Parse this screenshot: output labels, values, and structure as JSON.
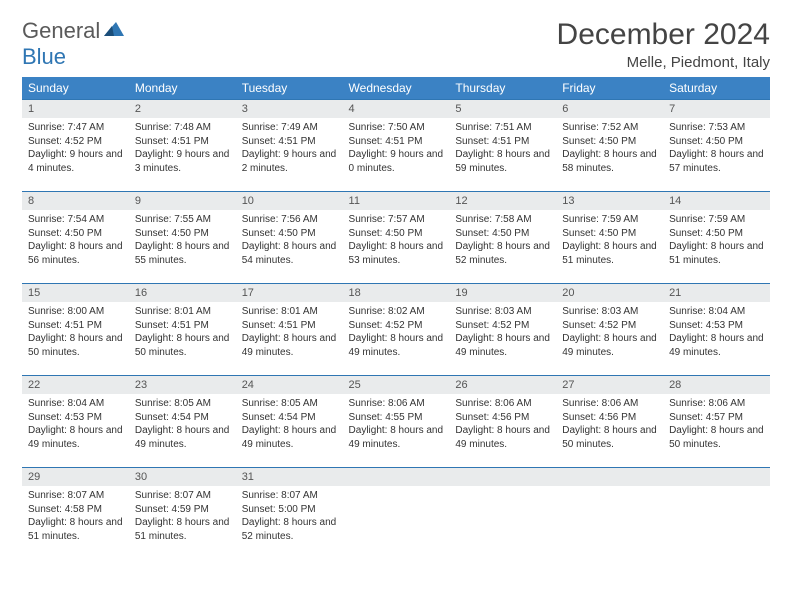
{
  "brand": {
    "name1": "General",
    "name2": "Blue"
  },
  "title": "December 2024",
  "location": "Melle, Piedmont, Italy",
  "colors": {
    "header_bg": "#3b82c4",
    "daynum_bg": "#e9ebec",
    "rule": "#2f76b3",
    "brand_blue": "#2f76b3"
  },
  "weekdays": [
    "Sunday",
    "Monday",
    "Tuesday",
    "Wednesday",
    "Thursday",
    "Friday",
    "Saturday"
  ],
  "days": [
    {
      "n": "1",
      "sr": "7:47 AM",
      "ss": "4:52 PM",
      "dl": "9 hours and 4 minutes."
    },
    {
      "n": "2",
      "sr": "7:48 AM",
      "ss": "4:51 PM",
      "dl": "9 hours and 3 minutes."
    },
    {
      "n": "3",
      "sr": "7:49 AM",
      "ss": "4:51 PM",
      "dl": "9 hours and 2 minutes."
    },
    {
      "n": "4",
      "sr": "7:50 AM",
      "ss": "4:51 PM",
      "dl": "9 hours and 0 minutes."
    },
    {
      "n": "5",
      "sr": "7:51 AM",
      "ss": "4:51 PM",
      "dl": "8 hours and 59 minutes."
    },
    {
      "n": "6",
      "sr": "7:52 AM",
      "ss": "4:50 PM",
      "dl": "8 hours and 58 minutes."
    },
    {
      "n": "7",
      "sr": "7:53 AM",
      "ss": "4:50 PM",
      "dl": "8 hours and 57 minutes."
    },
    {
      "n": "8",
      "sr": "7:54 AM",
      "ss": "4:50 PM",
      "dl": "8 hours and 56 minutes."
    },
    {
      "n": "9",
      "sr": "7:55 AM",
      "ss": "4:50 PM",
      "dl": "8 hours and 55 minutes."
    },
    {
      "n": "10",
      "sr": "7:56 AM",
      "ss": "4:50 PM",
      "dl": "8 hours and 54 minutes."
    },
    {
      "n": "11",
      "sr": "7:57 AM",
      "ss": "4:50 PM",
      "dl": "8 hours and 53 minutes."
    },
    {
      "n": "12",
      "sr": "7:58 AM",
      "ss": "4:50 PM",
      "dl": "8 hours and 52 minutes."
    },
    {
      "n": "13",
      "sr": "7:59 AM",
      "ss": "4:50 PM",
      "dl": "8 hours and 51 minutes."
    },
    {
      "n": "14",
      "sr": "7:59 AM",
      "ss": "4:50 PM",
      "dl": "8 hours and 51 minutes."
    },
    {
      "n": "15",
      "sr": "8:00 AM",
      "ss": "4:51 PM",
      "dl": "8 hours and 50 minutes."
    },
    {
      "n": "16",
      "sr": "8:01 AM",
      "ss": "4:51 PM",
      "dl": "8 hours and 50 minutes."
    },
    {
      "n": "17",
      "sr": "8:01 AM",
      "ss": "4:51 PM",
      "dl": "8 hours and 49 minutes."
    },
    {
      "n": "18",
      "sr": "8:02 AM",
      "ss": "4:52 PM",
      "dl": "8 hours and 49 minutes."
    },
    {
      "n": "19",
      "sr": "8:03 AM",
      "ss": "4:52 PM",
      "dl": "8 hours and 49 minutes."
    },
    {
      "n": "20",
      "sr": "8:03 AM",
      "ss": "4:52 PM",
      "dl": "8 hours and 49 minutes."
    },
    {
      "n": "21",
      "sr": "8:04 AM",
      "ss": "4:53 PM",
      "dl": "8 hours and 49 minutes."
    },
    {
      "n": "22",
      "sr": "8:04 AM",
      "ss": "4:53 PM",
      "dl": "8 hours and 49 minutes."
    },
    {
      "n": "23",
      "sr": "8:05 AM",
      "ss": "4:54 PM",
      "dl": "8 hours and 49 minutes."
    },
    {
      "n": "24",
      "sr": "8:05 AM",
      "ss": "4:54 PM",
      "dl": "8 hours and 49 minutes."
    },
    {
      "n": "25",
      "sr": "8:06 AM",
      "ss": "4:55 PM",
      "dl": "8 hours and 49 minutes."
    },
    {
      "n": "26",
      "sr": "8:06 AM",
      "ss": "4:56 PM",
      "dl": "8 hours and 49 minutes."
    },
    {
      "n": "27",
      "sr": "8:06 AM",
      "ss": "4:56 PM",
      "dl": "8 hours and 50 minutes."
    },
    {
      "n": "28",
      "sr": "8:06 AM",
      "ss": "4:57 PM",
      "dl": "8 hours and 50 minutes."
    },
    {
      "n": "29",
      "sr": "8:07 AM",
      "ss": "4:58 PM",
      "dl": "8 hours and 51 minutes."
    },
    {
      "n": "30",
      "sr": "8:07 AM",
      "ss": "4:59 PM",
      "dl": "8 hours and 51 minutes."
    },
    {
      "n": "31",
      "sr": "8:07 AM",
      "ss": "5:00 PM",
      "dl": "8 hours and 52 minutes."
    }
  ],
  "labels": {
    "sunrise": "Sunrise:",
    "sunset": "Sunset:",
    "daylight": "Daylight:"
  },
  "layout": {
    "start_weekday": 0,
    "cols": 7,
    "rows": 5
  }
}
